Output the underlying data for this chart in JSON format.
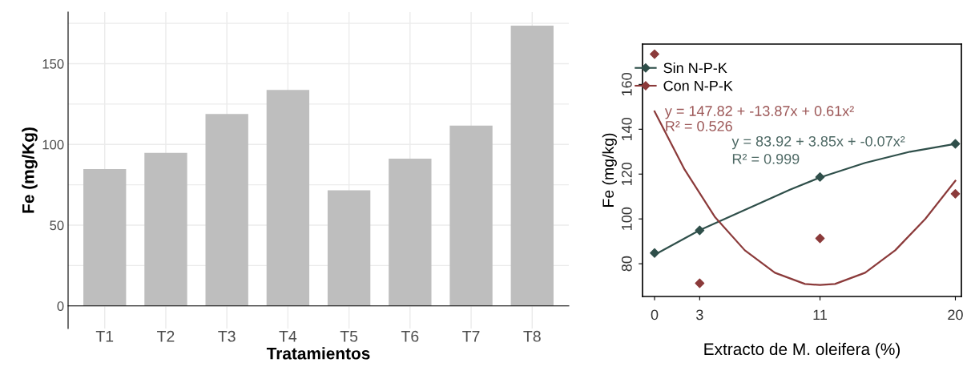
{
  "chart_data": [
    {
      "type": "bar",
      "xlabel": "Tratamientos",
      "ylabel": "Fe (mg/Kg)",
      "categories": [
        "T1",
        "T2",
        "T3",
        "T4",
        "T5",
        "T6",
        "T7",
        "T8"
      ],
      "values": [
        84.7,
        94.8,
        118.9,
        133.8,
        71.6,
        91.2,
        111.7,
        173.6
      ],
      "color": "#bebebe",
      "ylim": [
        -14,
        182
      ],
      "yticks": [
        0,
        {
          "value": 25,
          "label": null
        },
        50,
        {
          "value": 75,
          "label": null
        },
        100,
        {
          "value": 125,
          "label": null
        },
        150,
        {
          "value": 175,
          "label": null
        }
      ],
      "grid": true
    },
    {
      "type": "scatter",
      "xlabel": "Extracto de M. oleifera (%)",
      "ylabel": "Fe (mg/kg)",
      "xlim": [
        -0.8,
        20.4
      ],
      "xticks": [
        0,
        3,
        11,
        20
      ],
      "ylim": [
        65.4,
        178
      ],
      "yticks": [
        80,
        100,
        120,
        140,
        160
      ],
      "grid": false,
      "legend": "top left",
      "series": [
        {
          "name": "Sin N-P-K",
          "marker": "diamond",
          "color": "#2f4f4a",
          "x": [
            0,
            3,
            11,
            20
          ],
          "values": [
            84.8,
            94.9,
            118.7,
            133.5
          ]
        },
        {
          "name": "Con N-P-K",
          "marker": "diamond",
          "color": "#8b3a3a",
          "x": [
            0,
            3,
            11,
            20
          ],
          "values": [
            173.5,
            71.3,
            91.3,
            111.2
          ]
        },
        {
          "type": "line",
          "color": "#2f4f4a",
          "x": [
            0,
            3,
            6,
            9,
            11,
            14,
            17,
            20
          ],
          "values": [
            84,
            95,
            104,
            113,
            118.5,
            125,
            130,
            133.5
          ]
        },
        {
          "type": "line",
          "color": "#8b3a3a",
          "x": [
            0,
            2,
            4,
            6,
            8,
            10,
            11,
            12,
            14,
            16,
            18,
            20
          ],
          "values": [
            148,
            122,
            101,
            86,
            76,
            71,
            70.5,
            71,
            76,
            86,
            100,
            117
          ]
        }
      ],
      "annotations": [
        "y = 147.82 + -13.87x + 0.61x²",
        "R² = 0.526",
        "y = 83.92 + 3.85x + -0.07x²",
        "R² = 0.999"
      ]
    }
  ]
}
